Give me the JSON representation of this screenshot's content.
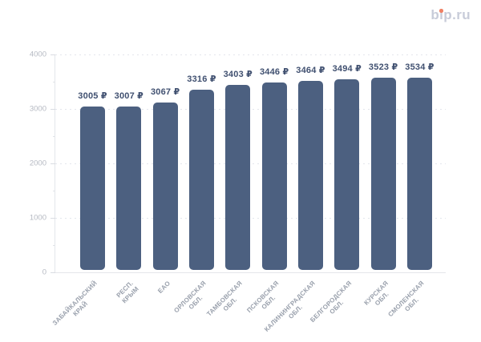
{
  "logo": {
    "text": "bip.ru",
    "color": "#c8ccd9",
    "dot_color": "#ef8064"
  },
  "chart_data": {
    "type": "bar",
    "title": "",
    "xlabel": "",
    "ylabel": "",
    "categories": [
      "ЗАБАЙКАЛЬСКИЙ\nКРАЙ",
      "РЕСП. КРЫМ",
      "ЕАО",
      "ОРЛОВСКАЯ\nОБЛ.",
      "ТАМБОВСКАЯ\nОБЛ.",
      "ПСКОВСКАЯ\nОБЛ.",
      "КАЛИНИНГРАДСКАЯ\nОБЛ.",
      "БЕЛГОРОДСКАЯ\nОБЛ.",
      "КУРСКАЯ ОБЛ.",
      "СМОЛЕНСКАЯ\nОБЛ."
    ],
    "values": [
      3005,
      3007,
      3067,
      3316,
      3403,
      3446,
      3464,
      3494,
      3523,
      3534
    ],
    "value_labels": [
      "3005 ₽",
      "3007 ₽",
      "3067 ₽",
      "3316 ₽",
      "3403 ₽",
      "3446 ₽",
      "3464 ₽",
      "3494 ₽",
      "3523 ₽",
      "3534 ₽"
    ],
    "ylim": [
      0,
      4000
    ],
    "yticks": [
      0,
      1000,
      2000,
      3000,
      4000
    ],
    "minor_tick_step": 500,
    "grid": "dotted-horizontal",
    "legend": "none",
    "colors": {
      "bar": "#4c6080",
      "value_label": "#405070",
      "y_tick_label": "#b5b9c2",
      "x_tick_label": "#99a0ac"
    }
  }
}
